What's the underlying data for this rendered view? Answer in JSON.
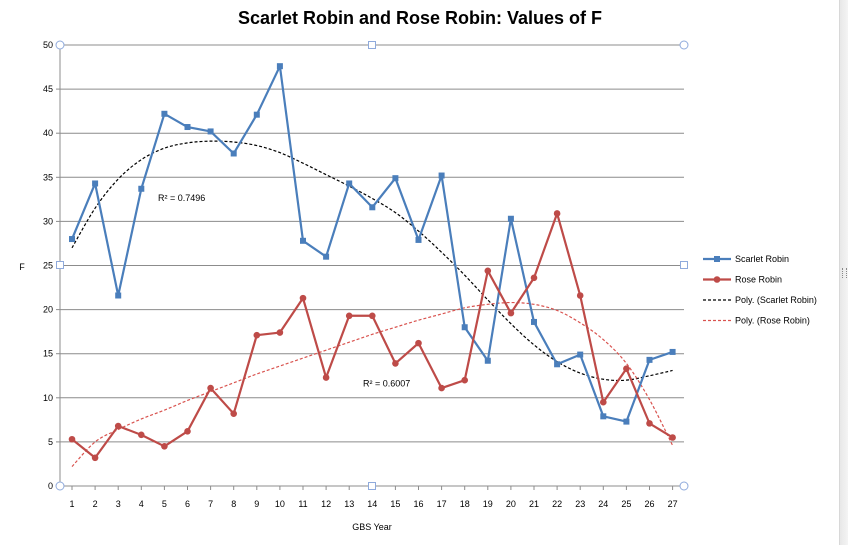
{
  "chart_data": {
    "type": "line",
    "title": "Scarlet Robin and Rose Robin: Values of F",
    "xlabel": "GBS Year",
    "ylabel": "F",
    "ylim": [
      0,
      50
    ],
    "yticks": [
      0,
      5,
      10,
      15,
      20,
      25,
      30,
      35,
      40,
      45,
      50
    ],
    "categories": [
      "1",
      "2",
      "3",
      "4",
      "5",
      "6",
      "7",
      "8",
      "9",
      "10",
      "11",
      "12",
      "13",
      "14",
      "15",
      "16",
      "17",
      "18",
      "19",
      "20",
      "21",
      "22",
      "23",
      "24",
      "25",
      "26",
      "27"
    ],
    "grid": "horizontal",
    "legend_position": "right",
    "series": [
      {
        "name": "Scarlet Robin",
        "color": "#4a7ebb",
        "marker": "square",
        "values": [
          28.0,
          34.3,
          21.6,
          33.7,
          42.2,
          40.7,
          40.2,
          37.7,
          42.1,
          47.6,
          27.8,
          26.0,
          34.3,
          31.6,
          34.9,
          27.9,
          35.2,
          18.0,
          14.2,
          30.3,
          18.6,
          13.8,
          14.9,
          7.9,
          7.3,
          14.3,
          15.2
        ]
      },
      {
        "name": "Rose Robin",
        "color": "#be4b48",
        "marker": "circle",
        "values": [
          5.3,
          3.2,
          6.8,
          5.8,
          4.5,
          6.2,
          11.1,
          8.2,
          17.1,
          17.4,
          21.3,
          12.3,
          19.3,
          19.3,
          13.9,
          16.2,
          11.1,
          12.0,
          24.4,
          19.6,
          23.6,
          30.9,
          21.6,
          9.5,
          13.3,
          7.1,
          5.5
        ]
      },
      {
        "name": "Poly. (Scarlet Robin)",
        "color": "#000000",
        "dashed": true,
        "values": [
          27.0,
          31.5,
          34.8,
          37.0,
          38.3,
          38.9,
          39.1,
          39.0,
          38.6,
          37.8,
          36.6,
          35.3,
          34.0,
          32.6,
          31.0,
          28.9,
          26.5,
          23.9,
          21.1,
          18.4,
          16.0,
          14.1,
          12.8,
          12.1,
          12.0,
          12.5,
          13.1
        ],
        "r_squared_label": "R² = 0.7496"
      },
      {
        "name": "Poly. (Rose Robin)",
        "color": "#d9534f",
        "dashed": true,
        "values": [
          2.2,
          5.0,
          6.4,
          7.6,
          8.6,
          9.7,
          10.7,
          11.7,
          12.7,
          13.6,
          14.5,
          15.4,
          16.3,
          17.2,
          18.0,
          18.8,
          19.5,
          20.2,
          20.6,
          20.8,
          20.6,
          19.9,
          18.5,
          16.6,
          13.9,
          9.8,
          4.6
        ],
        "r_squared_label": "R² = 0.6007"
      }
    ]
  }
}
